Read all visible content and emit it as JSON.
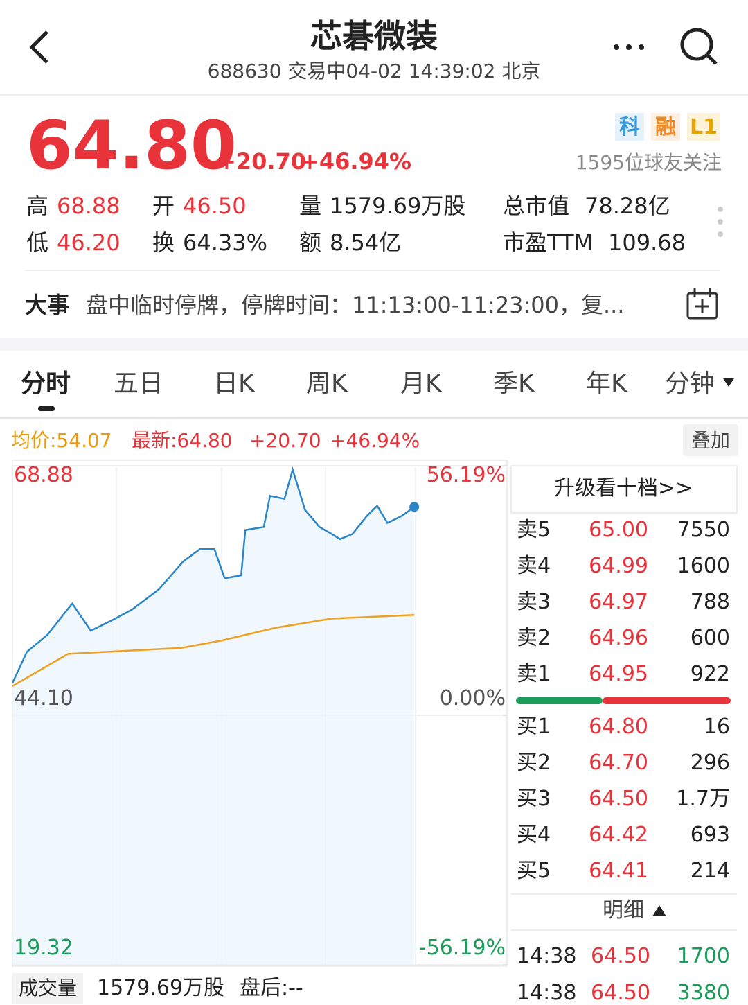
{
  "header": {
    "title": "芯碁微装",
    "subtitle": "688630 交易中04-02 14:39:02 北京"
  },
  "quote": {
    "price": "64.80",
    "change": "+20.70",
    "change_pct": "+46.94%",
    "badges": [
      "科",
      "融",
      "L1"
    ],
    "followers": "1595位球友关注",
    "stats": [
      {
        "label": "高",
        "value": "68.88"
      },
      {
        "label": "开",
        "value": "46.50"
      },
      {
        "label": "量",
        "value": "1579.69万股"
      },
      {
        "label": "总市值",
        "value": "78.28亿"
      },
      {
        "label": "低",
        "value": "46.20"
      },
      {
        "label": "换",
        "value": "64.33%"
      },
      {
        "label": "额",
        "value": "8.54亿"
      },
      {
        "label": "市盈TTM",
        "value": "109.68"
      }
    ]
  },
  "event": {
    "label": "大事",
    "text": "盘中临时停牌，停牌时间：11:13:00-11:23:00，复..."
  },
  "tabs": [
    "分时",
    "五日",
    "日K",
    "周K",
    "月K",
    "季K",
    "年K",
    "分钟"
  ],
  "info_bar": {
    "avg": "均价:54.07",
    "latest": "最新:64.80",
    "change": "+20.70",
    "change_pct": "+46.94%",
    "overlay": "叠加"
  },
  "chart_data": {
    "type": "line",
    "xlim": [
      0,
      240
    ],
    "ylim": [
      19.32,
      68.88
    ],
    "yticks": [
      68.88,
      {
        "value": 44.1,
        "label": "44.10"
      },
      19.32
    ],
    "y2lim": [
      -56.19,
      56.19
    ],
    "y2ticks": [
      {
        "value": 56.19,
        "label": "56.19%"
      },
      {
        "value": 0,
        "label": "0.00%"
      },
      {
        "value": -56.19,
        "label": "-56.19%"
      }
    ],
    "price": {
      "color": "#2a86c8",
      "x": [
        0,
        7,
        17,
        29,
        38,
        48,
        58,
        71,
        83,
        91,
        98,
        103,
        111,
        113,
        122,
        125,
        132,
        136,
        142,
        149,
        155,
        159,
        165,
        172,
        177,
        182,
        189,
        195
      ],
      "values": [
        47.3,
        50.4,
        52.1,
        55.2,
        52.5,
        53.5,
        54.6,
        56.6,
        59.4,
        60.6,
        60.6,
        57.7,
        58.0,
        62.5,
        62.8,
        65.9,
        65.6,
        68.5,
        64.5,
        62.8,
        62.1,
        61.6,
        62.1,
        63.9,
        64.9,
        63.2,
        63.9,
        64.8
      ]
    },
    "average": {
      "color": "#f0a020",
      "x": [
        0,
        27,
        82,
        101,
        128,
        155,
        195
      ],
      "values": [
        47.0,
        50.2,
        50.8,
        51.5,
        52.8,
        53.7,
        54.07
      ]
    }
  },
  "order_book": {
    "upgrade": "升级看十档>>",
    "asks": [
      [
        "卖5",
        "65.00",
        "7550"
      ],
      [
        "卖4",
        "64.99",
        "1600"
      ],
      [
        "卖3",
        "64.97",
        "788"
      ],
      [
        "卖2",
        "64.96",
        "600"
      ],
      [
        "卖1",
        "64.95",
        "922"
      ]
    ],
    "bids": [
      [
        "买1",
        "64.80",
        "16"
      ],
      [
        "买2",
        "64.70",
        "296"
      ],
      [
        "买3",
        "64.50",
        "1.7万"
      ],
      [
        "买4",
        "64.42",
        "693"
      ],
      [
        "买5",
        "64.41",
        "214"
      ]
    ],
    "details_label": "明细",
    "trades": [
      [
        "14:38",
        "64.50",
        "1700"
      ],
      [
        "14:38",
        "64.50",
        "3380"
      ]
    ]
  },
  "footer": {
    "label": "成交量",
    "volume": "1579.69万股",
    "after_hours": "盘后:--"
  }
}
